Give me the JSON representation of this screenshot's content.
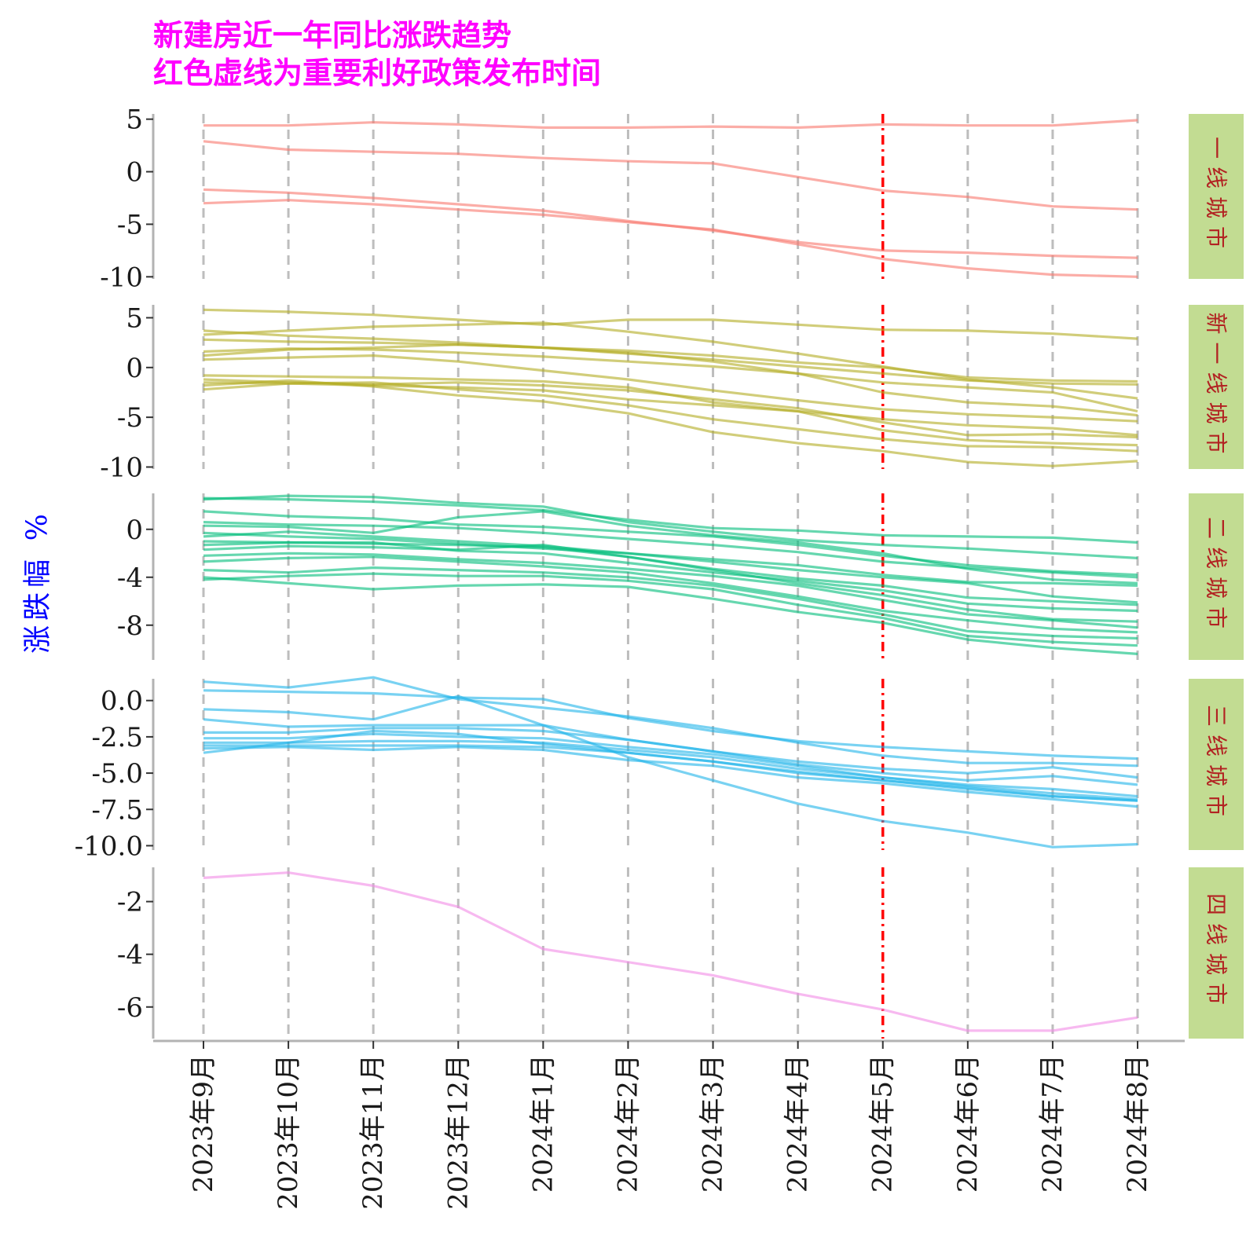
{
  "chart_data": {
    "type": "line",
    "title": "新建房近一年同比涨跌趋势",
    "subtitle": "红色虚线为重要利好政策发布时间",
    "ylabel": "涨跌幅 %",
    "xlabel": "",
    "x": [
      "2023年9月",
      "2023年10月",
      "2023年11月",
      "2023年12月",
      "2024年1月",
      "2024年2月",
      "2024年3月",
      "2024年4月",
      "2024年5月",
      "2024年6月",
      "2024年7月",
      "2024年8月"
    ],
    "policy_marker": {
      "x": "2024年5月",
      "color": "#ff0000",
      "style": "dash-dot"
    },
    "grid": {
      "vertical_dashed": true,
      "color": "#bdbdbd"
    },
    "strip_color": "#c2dc92",
    "strip_text_color": "#b22222",
    "facets": [
      {
        "label": "一线城市",
        "color": "#f8766d",
        "ylim": [
          -10.2,
          5.5
        ],
        "yticks": [
          5,
          0,
          -5,
          -10
        ],
        "tick_labels": [
          "5",
          "0",
          "-5",
          "-10"
        ],
        "series": [
          [
            4.4,
            4.4,
            4.7,
            4.5,
            4.2,
            4.2,
            4.3,
            4.2,
            4.5,
            4.4,
            4.4,
            4.9
          ],
          [
            2.9,
            2.1,
            1.9,
            1.7,
            1.3,
            1.0,
            0.8,
            -0.5,
            -1.8,
            -2.4,
            -3.3,
            -3.6
          ],
          [
            -1.7,
            -2.0,
            -2.5,
            -3.1,
            -3.7,
            -4.7,
            -5.6,
            -6.7,
            -7.5,
            -7.7,
            -8.0,
            -8.2
          ],
          [
            -3.0,
            -2.7,
            -3.1,
            -3.6,
            -4.1,
            -4.8,
            -5.5,
            -6.9,
            -8.3,
            -9.2,
            -9.8,
            -10.0
          ]
        ]
      },
      {
        "label": "新一线城市",
        "color": "#b3ab22",
        "ylim": [
          -10.2,
          6.3
        ],
        "yticks": [
          5,
          0,
          -5,
          -10
        ],
        "tick_labels": [
          "5",
          "0",
          "-5",
          "-10"
        ],
        "series": [
          [
            5.8,
            5.6,
            5.3,
            4.8,
            4.3,
            4.8,
            4.8,
            4.3,
            3.8,
            3.7,
            3.4,
            2.9
          ],
          [
            3.7,
            3.2,
            2.9,
            2.5,
            2.0,
            1.7,
            1.2,
            0.5,
            0.0,
            -1.0,
            -1.3,
            -1.4
          ],
          [
            3.3,
            3.7,
            4.1,
            4.3,
            4.5,
            3.6,
            2.6,
            1.4,
            0.1,
            -1.2,
            -2.0,
            -3.1
          ],
          [
            2.8,
            2.6,
            2.5,
            2.3,
            2.0,
            1.4,
            0.8,
            0.1,
            -0.6,
            -1.3,
            -1.6,
            -1.7
          ],
          [
            1.6,
            1.9,
            1.8,
            1.5,
            1.1,
            0.6,
            0.1,
            -0.6,
            -1.5,
            -2.0,
            -2.5,
            -4.4
          ],
          [
            1.2,
            1.8,
            2.0,
            2.3,
            2.0,
            1.5,
            0.6,
            -0.6,
            -2.5,
            -3.5,
            -3.9,
            -4.8
          ],
          [
            0.8,
            1.0,
            1.2,
            0.6,
            -0.3,
            -1.2,
            -2.3,
            -3.3,
            -4.2,
            -4.7,
            -5.0,
            -5.4
          ],
          [
            -0.8,
            -0.9,
            -1.0,
            -1.2,
            -1.4,
            -2.0,
            -3.5,
            -4.4,
            -5.2,
            -5.8,
            -6.1,
            -6.8
          ],
          [
            -1.2,
            -1.5,
            -1.7,
            -1.5,
            -1.8,
            -2.3,
            -3.2,
            -4.1,
            -5.5,
            -6.8,
            -6.7,
            -7.0
          ],
          [
            -1.5,
            -1.6,
            -1.8,
            -2.0,
            -2.3,
            -3.2,
            -3.8,
            -4.4,
            -6.3,
            -7.3,
            -7.6,
            -7.8
          ],
          [
            -2.2,
            -1.6,
            -1.5,
            -2.2,
            -2.8,
            -3.8,
            -5.2,
            -6.2,
            -7.2,
            -7.9,
            -8.0,
            -8.4
          ],
          [
            -1.8,
            -1.3,
            -1.9,
            -2.8,
            -3.4,
            -4.6,
            -6.5,
            -7.6,
            -8.4,
            -9.5,
            -9.9,
            -9.4
          ]
        ]
      },
      {
        "label": "二线城市",
        "color": "#00bc7a",
        "ylim": [
          -10.9,
          3.0
        ],
        "yticks": [
          0,
          -4,
          -8
        ],
        "tick_labels": [
          "0",
          "-4",
          "-8"
        ],
        "series": [
          [
            2.6,
            2.5,
            2.3,
            2.0,
            1.6,
            0.8,
            0.1,
            -0.1,
            -0.5,
            -0.6,
            -0.7,
            -1.1
          ],
          [
            2.5,
            2.8,
            2.7,
            2.2,
            1.9,
            0.6,
            -0.2,
            -0.9,
            -1.3,
            -1.6,
            -2.0,
            -2.4
          ],
          [
            1.5,
            1.1,
            0.9,
            0.4,
            0.2,
            -0.2,
            -0.6,
            -1.3,
            -2.2,
            -3.0,
            -3.5,
            -3.8
          ],
          [
            0.6,
            0.4,
            0.3,
            0.1,
            -0.3,
            -0.8,
            -1.3,
            -1.9,
            -2.7,
            -3.2,
            -3.6,
            -4.0
          ],
          [
            0.3,
            0.2,
            -0.3,
            1.0,
            1.5,
            0.3,
            -0.5,
            -1.1,
            -2.0,
            -3.3,
            -4.2,
            -4.5
          ],
          [
            -0.3,
            -0.6,
            -0.8,
            -1.2,
            -1.6,
            -2.0,
            -2.5,
            -3.0,
            -3.8,
            -4.4,
            -4.5,
            -4.7
          ],
          [
            -0.6,
            -0.2,
            -0.6,
            -1.0,
            -1.4,
            -2.0,
            -2.7,
            -3.4,
            -4.0,
            -4.5,
            -5.6,
            -6.1
          ],
          [
            -1.0,
            -1.1,
            -1.2,
            -1.3,
            -1.5,
            -2.3,
            -3.3,
            -4.1,
            -4.7,
            -5.7,
            -6.0,
            -6.3
          ],
          [
            -1.3,
            -1.1,
            -1.1,
            -1.8,
            -2.0,
            -2.8,
            -3.6,
            -4.3,
            -5.1,
            -6.2,
            -6.6,
            -6.8
          ],
          [
            -1.7,
            -1.4,
            -1.5,
            -1.7,
            -1.3,
            -2.3,
            -3.4,
            -4.5,
            -5.5,
            -6.7,
            -7.5,
            -7.7
          ],
          [
            -2.2,
            -2.0,
            -2.1,
            -2.5,
            -2.8,
            -3.3,
            -3.9,
            -4.7,
            -5.9,
            -7.1,
            -7.6,
            -8.2
          ],
          [
            -2.7,
            -2.4,
            -2.3,
            -2.7,
            -3.1,
            -3.6,
            -4.5,
            -5.6,
            -6.8,
            -7.6,
            -8.3,
            -8.6
          ],
          [
            -3.4,
            -3.6,
            -3.2,
            -3.4,
            -3.6,
            -4.0,
            -4.7,
            -5.8,
            -7.1,
            -8.5,
            -8.9,
            -9.1
          ],
          [
            -4.2,
            -3.9,
            -3.7,
            -3.9,
            -3.9,
            -4.3,
            -5.0,
            -6.3,
            -7.4,
            -8.9,
            -9.4,
            -9.7
          ],
          [
            -4.0,
            -4.5,
            -5.0,
            -4.7,
            -4.6,
            -4.8,
            -5.8,
            -6.9,
            -7.8,
            -9.2,
            -9.9,
            -10.4
          ]
        ]
      },
      {
        "label": "三线城市",
        "color": "#1fb4ea",
        "ylim": [
          -10.3,
          1.5
        ],
        "yticks": [
          0,
          -2.5,
          -5,
          -7.5,
          -10
        ],
        "tick_labels": [
          "0.0",
          "-2.5",
          "-5.0",
          "-7.5",
          "-10.0"
        ],
        "series": [
          [
            0.7,
            0.6,
            0.5,
            0.2,
            0.1,
            -1.2,
            -2.1,
            -2.8,
            -3.2,
            -3.5,
            -3.8,
            -4.0
          ],
          [
            1.3,
            0.9,
            1.6,
            0.1,
            -0.5,
            -1.1,
            -1.9,
            -2.9,
            -3.8,
            -4.3,
            -4.3,
            -4.5
          ],
          [
            -0.6,
            -0.8,
            -1.3,
            0.3,
            -1.7,
            -3.9,
            -5.5,
            -7.1,
            -8.3,
            -9.1,
            -10.1,
            -9.9
          ],
          [
            -1.3,
            -1.8,
            -1.7,
            -1.7,
            -1.7,
            -2.7,
            -3.5,
            -4.2,
            -4.7,
            -5.0,
            -4.6,
            -5.3
          ],
          [
            -2.2,
            -2.2,
            -1.9,
            -1.9,
            -2.1,
            -2.7,
            -3.5,
            -4.4,
            -5.0,
            -5.5,
            -5.2,
            -5.8
          ],
          [
            -2.6,
            -2.6,
            -2.3,
            -2.5,
            -2.6,
            -3.2,
            -3.7,
            -4.5,
            -5.3,
            -5.8,
            -6.1,
            -6.6
          ],
          [
            -2.9,
            -2.9,
            -2.8,
            -2.8,
            -2.9,
            -3.4,
            -3.9,
            -4.7,
            -5.3,
            -5.9,
            -6.4,
            -6.8
          ],
          [
            -3.1,
            -3.1,
            -3.1,
            -3.1,
            -3.2,
            -3.6,
            -4.2,
            -5.0,
            -5.5,
            -6.0,
            -6.6,
            -6.9
          ],
          [
            -3.3,
            -3.2,
            -3.4,
            -3.2,
            -3.4,
            -4.1,
            -4.5,
            -5.3,
            -5.7,
            -6.3,
            -6.8,
            -7.3
          ],
          [
            -3.6,
            -2.9,
            -2.1,
            -2.3,
            -3.0,
            -3.6,
            -4.2,
            -4.9,
            -5.5,
            -6.1,
            -6.6,
            -6.9
          ]
        ]
      },
      {
        "label": "四线城市",
        "color": "#f28be6",
        "ylim": [
          -7.2,
          -0.7
        ],
        "yticks": [
          -2,
          -4,
          -6
        ],
        "tick_labels": [
          "-2",
          "-4",
          "-6"
        ],
        "series": [
          [
            -1.1,
            -0.9,
            -1.4,
            -2.2,
            -3.8,
            -4.3,
            -4.8,
            -5.5,
            -6.1,
            -6.9,
            -6.9,
            -6.4
          ]
        ]
      }
    ]
  }
}
